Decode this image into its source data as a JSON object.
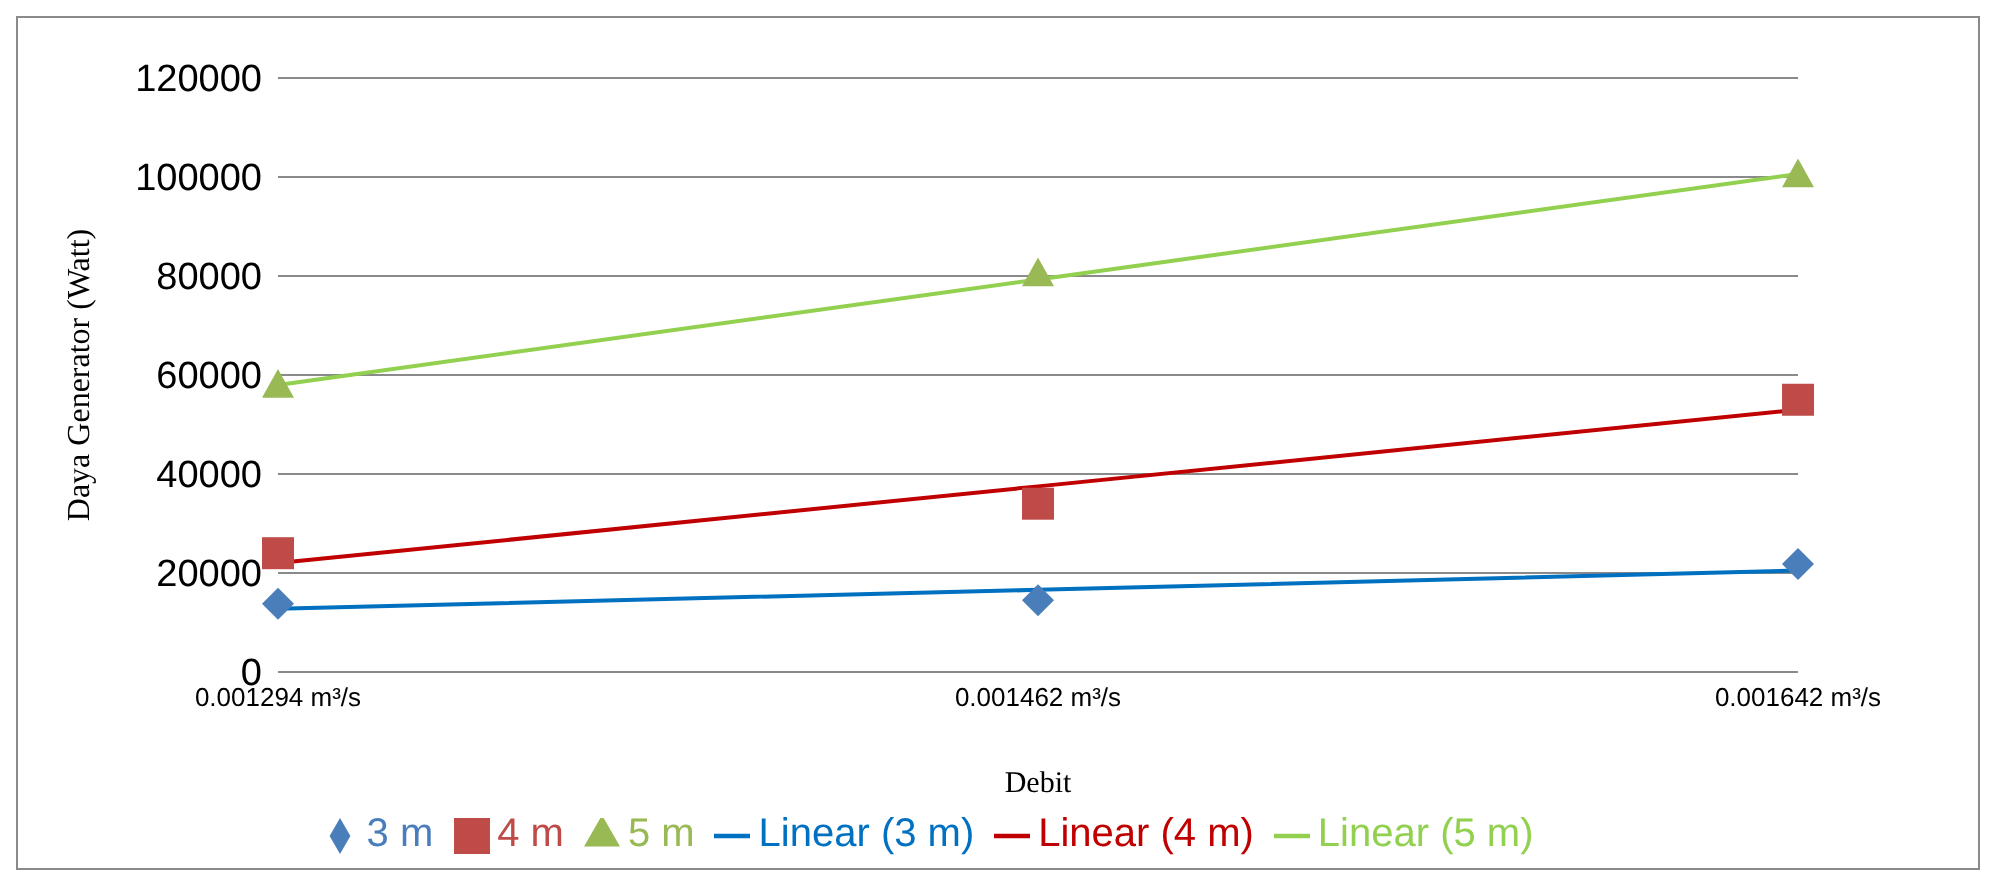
{
  "chart_data": {
    "type": "scatter",
    "xlabel": "Debit",
    "ylabel": "Daya Generator (Watt)",
    "categories": [
      "0.001294 m³/s",
      "0.001462 m³/s",
      "0.001642 m³/s"
    ],
    "ylim": [
      0,
      120000
    ],
    "yticks": [
      0,
      20000,
      40000,
      60000,
      80000,
      100000,
      120000
    ],
    "grid": "y",
    "legend": "bottom",
    "series": [
      {
        "name": "3 m",
        "marker": "diamond",
        "color": "#4a7ebb",
        "values": [
          13800,
          14500,
          21800
        ]
      },
      {
        "name": "4 m",
        "marker": "square",
        "color": "#be4b48",
        "values": [
          24000,
          34000,
          55000
        ]
      },
      {
        "name": "5 m",
        "marker": "triangle",
        "color": "#98b954",
        "values": [
          58000,
          80500,
          100500
        ]
      },
      {
        "name": "Linear (3 m)",
        "type": "line",
        "marker": "none",
        "color": "#0070c0",
        "values": [
          12800,
          16600,
          20500
        ]
      },
      {
        "name": "Linear (4 m)",
        "type": "line",
        "marker": "none",
        "color": "#c00000",
        "values": [
          22000,
          37500,
          53000
        ]
      },
      {
        "name": "Linear (5 m)",
        "type": "line",
        "marker": "none",
        "color": "#92d050",
        "values": [
          58000,
          79300,
          100600
        ]
      }
    ]
  }
}
